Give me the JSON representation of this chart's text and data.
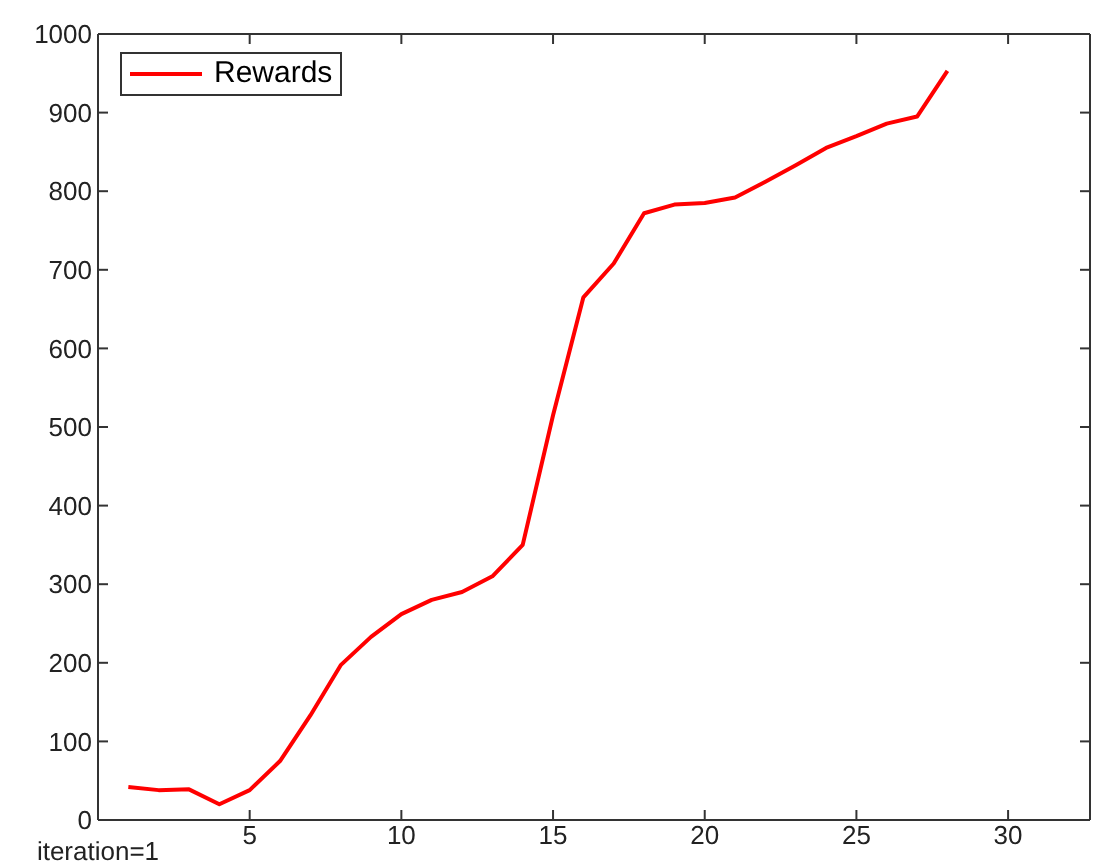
{
  "chart_data": {
    "type": "line",
    "x": [
      1,
      2,
      3,
      4,
      5,
      6,
      7,
      8,
      9,
      10,
      11,
      12,
      13,
      14,
      15,
      16,
      17,
      18,
      19,
      20,
      21,
      22,
      23,
      24,
      25,
      26,
      27,
      28
    ],
    "series": [
      {
        "name": "Rewards",
        "color": "#ff0000",
        "values": [
          42,
          38,
          39,
          20,
          38,
          75,
          133,
          197,
          233,
          262,
          280,
          290,
          310,
          350,
          515,
          665,
          708,
          772,
          783,
          785,
          792,
          812,
          833,
          855,
          870,
          886,
          895,
          953
        ]
      }
    ],
    "xlabel": "iteration=1",
    "xlim": [
      0,
      32.7
    ],
    "xticks": [
      5,
      10,
      15,
      20,
      25,
      30
    ],
    "ylim": [
      0,
      1000
    ],
    "yticks": [
      0,
      100,
      200,
      300,
      400,
      500,
      600,
      700,
      800,
      900,
      1000
    ],
    "grid": false,
    "legend": "top left",
    "marker": "none",
    "line_style": "solid"
  }
}
